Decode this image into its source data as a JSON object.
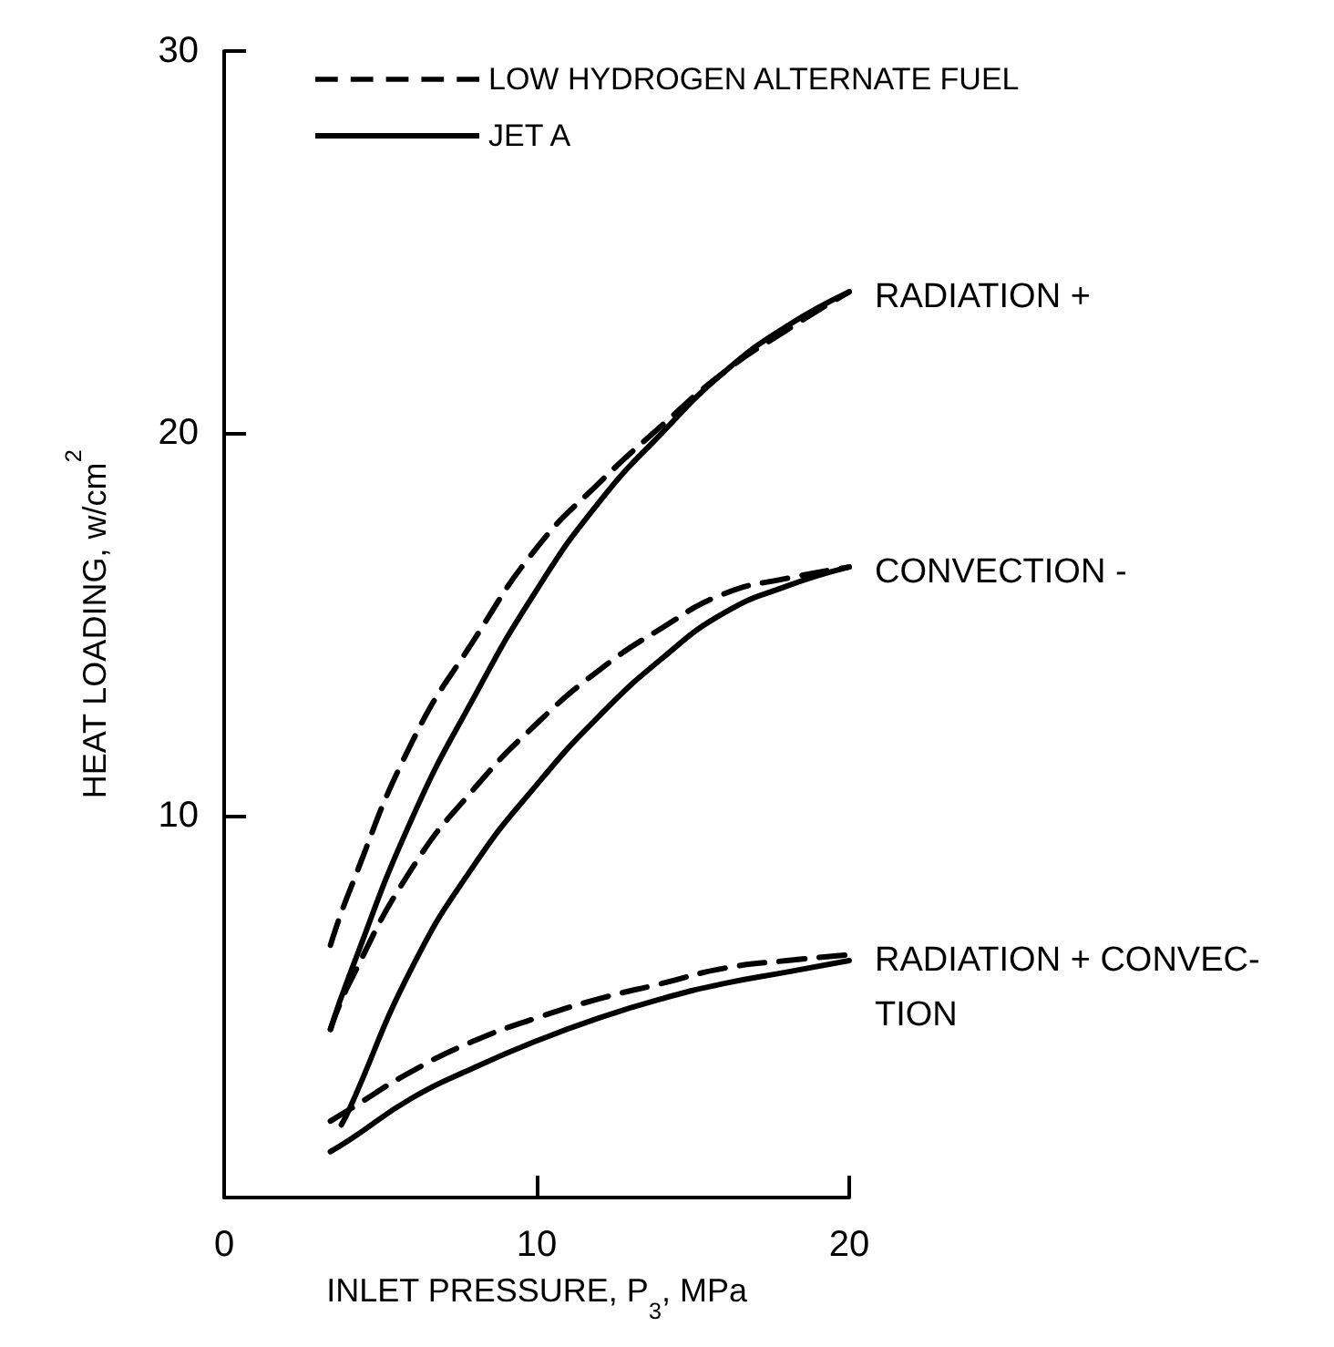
{
  "chart_data": {
    "type": "line",
    "xlabel": "INLET PRESSURE, P$_{3}$, MPa",
    "ylabel": "HEAT LOADING, w/cm$^{2}$",
    "xlim": [
      0,
      20
    ],
    "xticks": [
      0,
      10,
      20
    ],
    "ylim": [
      0,
      30
    ],
    "yticks": [
      10,
      20,
      30
    ],
    "grid": false,
    "legend": "top",
    "marker": "none",
    "series": [
      {
        "name": "LOW HYDROGEN ALTERNATE FUEL",
        "color": "#000000",
        "line_style": "dashed",
        "x": [
          3.4,
          4,
          6,
          8,
          10,
          12,
          14,
          16,
          18,
          20
        ],
        "values": [
          6.6,
          8.0,
          11.9,
          14.6,
          17.0,
          18.7,
          20.2,
          21.6,
          22.7,
          23.7
        ]
      },
      {
        "name": "JET A",
        "color": "#000000",
        "line_style": "solid",
        "x": [
          3.4,
          4,
          6,
          8,
          10,
          12,
          14,
          16,
          18,
          20
        ],
        "values": [
          4.4,
          5.8,
          9.9,
          13.1,
          15.9,
          18.2,
          20.0,
          21.6,
          22.8,
          23.7
        ]
      },
      {
        "color": "#000000",
        "line_style": "dashed",
        "x": [
          3.4,
          4,
          6,
          8,
          10,
          12,
          14,
          16,
          18,
          20
        ],
        "values": [
          4.4,
          5.6,
          8.6,
          10.7,
          12.4,
          13.8,
          14.9,
          15.8,
          16.2,
          16.5
        ]
      },
      {
        "color": "#000000",
        "line_style": "solid",
        "x": [
          3.75,
          4,
          6,
          8,
          10,
          12,
          14,
          16,
          18,
          20
        ],
        "values": [
          1.9,
          2.3,
          6.0,
          8.7,
          10.8,
          12.6,
          14.1,
          15.3,
          16.0,
          16.5
        ]
      },
      {
        "color": "#000000",
        "line_style": "dashed",
        "x": [
          3.4,
          4,
          6,
          8,
          10,
          12,
          14,
          16,
          18,
          20
        ],
        "values": [
          2.0,
          2.3,
          3.3,
          4.1,
          4.7,
          5.2,
          5.6,
          6.0,
          6.2,
          6.35
        ]
      },
      {
        "color": "#000000",
        "line_style": "solid",
        "x": [
          3.4,
          4,
          6,
          8,
          10,
          12,
          14,
          16,
          18,
          20
        ],
        "values": [
          1.2,
          1.5,
          2.6,
          3.4,
          4.1,
          4.7,
          5.2,
          5.6,
          5.9,
          6.2
        ]
      }
    ],
    "annotations": [
      "RADIATION +",
      "CONVECTION -",
      "RADIATION + CONVEC-\nTION"
    ]
  }
}
